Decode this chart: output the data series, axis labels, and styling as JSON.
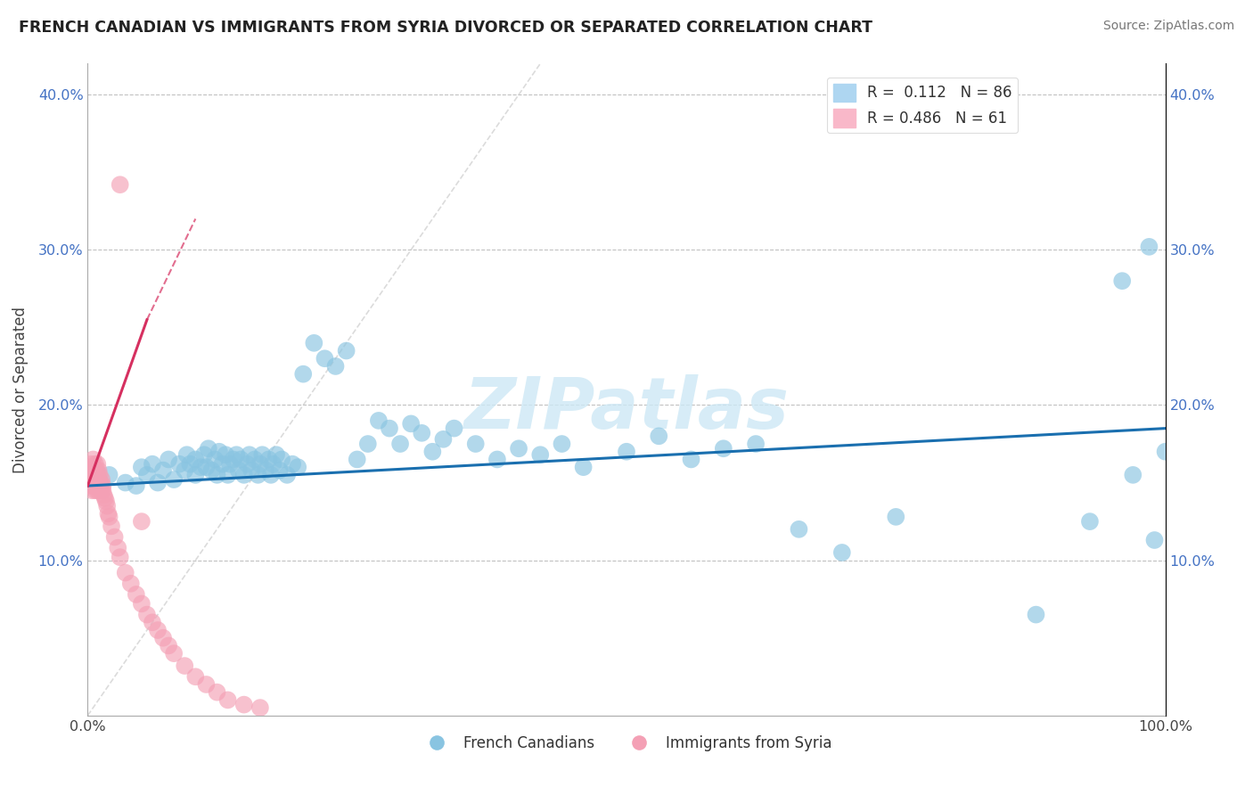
{
  "title": "FRENCH CANADIAN VS IMMIGRANTS FROM SYRIA DIVORCED OR SEPARATED CORRELATION CHART",
  "source": "Source: ZipAtlas.com",
  "ylabel": "Divorced or Separated",
  "xlim": [
    0.0,
    1.0
  ],
  "ylim": [
    0.0,
    0.42
  ],
  "xtick_positions": [
    0.0,
    0.1,
    0.2,
    0.3,
    0.4,
    0.5,
    0.6,
    0.7,
    0.8,
    0.9,
    1.0
  ],
  "xtick_labels": [
    "0.0%",
    "",
    "",
    "",
    "",
    "",
    "",
    "",
    "",
    "",
    "100.0%"
  ],
  "ytick_positions": [
    0.0,
    0.1,
    0.2,
    0.3,
    0.4
  ],
  "ytick_labels": [
    "",
    "10.0%",
    "20.0%",
    "30.0%",
    "40.0%"
  ],
  "blue_color": "#89c4e1",
  "pink_color": "#f4a0b5",
  "blue_line_color": "#1a6faf",
  "pink_line_color": "#d63060",
  "grid_color": "#bbbbbb",
  "watermark_text": "ZIPatlas",
  "watermark_color": "#cde8f5",
  "background_color": "#ffffff",
  "blue_scatter_x": [
    0.02,
    0.035,
    0.045,
    0.05,
    0.055,
    0.06,
    0.065,
    0.07,
    0.075,
    0.08,
    0.085,
    0.09,
    0.092,
    0.095,
    0.1,
    0.1,
    0.105,
    0.108,
    0.11,
    0.112,
    0.115,
    0.118,
    0.12,
    0.122,
    0.125,
    0.128,
    0.13,
    0.132,
    0.135,
    0.138,
    0.14,
    0.142,
    0.145,
    0.148,
    0.15,
    0.152,
    0.155,
    0.158,
    0.16,
    0.162,
    0.165,
    0.168,
    0.17,
    0.172,
    0.175,
    0.178,
    0.18,
    0.185,
    0.19,
    0.195,
    0.2,
    0.21,
    0.22,
    0.23,
    0.24,
    0.25,
    0.26,
    0.27,
    0.28,
    0.29,
    0.3,
    0.31,
    0.32,
    0.33,
    0.34,
    0.36,
    0.38,
    0.4,
    0.42,
    0.44,
    0.46,
    0.5,
    0.53,
    0.56,
    0.59,
    0.62,
    0.66,
    0.7,
    0.75,
    0.88,
    0.93,
    0.96,
    0.97,
    0.99,
    1.0,
    0.985
  ],
  "blue_scatter_y": [
    0.155,
    0.15,
    0.148,
    0.16,
    0.155,
    0.162,
    0.15,
    0.158,
    0.165,
    0.152,
    0.162,
    0.158,
    0.168,
    0.162,
    0.155,
    0.165,
    0.16,
    0.168,
    0.16,
    0.172,
    0.158,
    0.165,
    0.155,
    0.17,
    0.162,
    0.168,
    0.155,
    0.162,
    0.165,
    0.168,
    0.158,
    0.165,
    0.155,
    0.162,
    0.168,
    0.158,
    0.165,
    0.155,
    0.162,
    0.168,
    0.158,
    0.165,
    0.155,
    0.162,
    0.168,
    0.158,
    0.165,
    0.155,
    0.162,
    0.16,
    0.22,
    0.24,
    0.23,
    0.225,
    0.235,
    0.165,
    0.175,
    0.19,
    0.185,
    0.175,
    0.188,
    0.182,
    0.17,
    0.178,
    0.185,
    0.175,
    0.165,
    0.172,
    0.168,
    0.175,
    0.16,
    0.17,
    0.18,
    0.165,
    0.172,
    0.175,
    0.12,
    0.105,
    0.128,
    0.065,
    0.125,
    0.28,
    0.155,
    0.113,
    0.17,
    0.302
  ],
  "pink_scatter_x": [
    0.002,
    0.003,
    0.003,
    0.004,
    0.004,
    0.004,
    0.005,
    0.005,
    0.005,
    0.006,
    0.006,
    0.006,
    0.007,
    0.007,
    0.007,
    0.008,
    0.008,
    0.008,
    0.009,
    0.009,
    0.009,
    0.01,
    0.01,
    0.01,
    0.011,
    0.011,
    0.012,
    0.012,
    0.013,
    0.013,
    0.014,
    0.014,
    0.015,
    0.016,
    0.017,
    0.018,
    0.019,
    0.02,
    0.022,
    0.025,
    0.028,
    0.03,
    0.035,
    0.04,
    0.045,
    0.05,
    0.055,
    0.06,
    0.065,
    0.07,
    0.075,
    0.08,
    0.09,
    0.1,
    0.11,
    0.12,
    0.13,
    0.145,
    0.16,
    0.05,
    0.03
  ],
  "pink_scatter_y": [
    0.155,
    0.148,
    0.162,
    0.152,
    0.145,
    0.16,
    0.15,
    0.158,
    0.165,
    0.152,
    0.158,
    0.148,
    0.155,
    0.162,
    0.145,
    0.152,
    0.158,
    0.148,
    0.155,
    0.162,
    0.145,
    0.152,
    0.148,
    0.158,
    0.145,
    0.155,
    0.15,
    0.148,
    0.145,
    0.152,
    0.148,
    0.145,
    0.142,
    0.14,
    0.138,
    0.135,
    0.13,
    0.128,
    0.122,
    0.115,
    0.108,
    0.102,
    0.092,
    0.085,
    0.078,
    0.072,
    0.065,
    0.06,
    0.055,
    0.05,
    0.045,
    0.04,
    0.032,
    0.025,
    0.02,
    0.015,
    0.01,
    0.007,
    0.005,
    0.125,
    0.342
  ],
  "blue_trend_x": [
    0.0,
    1.0
  ],
  "blue_trend_y": [
    0.148,
    0.185
  ],
  "pink_trend_x_start": 0.0,
  "pink_trend_x_end": 0.055,
  "pink_trend_y_start": 0.148,
  "pink_trend_y_end": 0.255,
  "diag_line_color": "#cccccc"
}
